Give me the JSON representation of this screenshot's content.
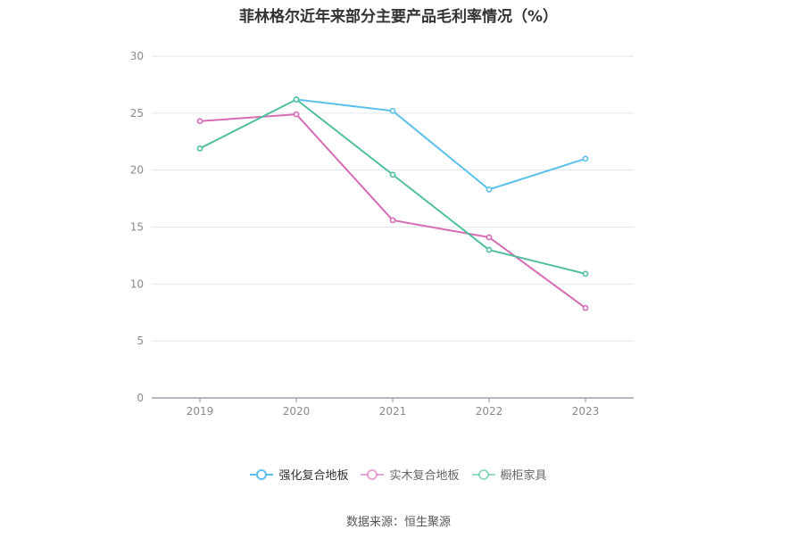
{
  "title": "菲林格尔近年来部分主要产品毛利率情况（%）",
  "source": "数据来源：恒生聚源",
  "chart_data": {
    "type": "line",
    "title": "菲林格尔近年来部分主要产品毛利率情况（%）",
    "categories": [
      "2019",
      "2020",
      "2021",
      "2022",
      "2023"
    ],
    "ylim": [
      0,
      30
    ],
    "yticks": [
      0,
      5,
      10,
      15,
      20,
      25,
      30
    ],
    "grid": true,
    "legend_position": "bottom",
    "series": [
      {
        "name": "强化复合地板",
        "color": "#5bc0eb",
        "values": [
          null,
          26.2,
          25.2,
          18.3,
          21.0
        ]
      },
      {
        "name": "实木复合地板",
        "color": "#d66bb5",
        "values": [
          24.3,
          24.9,
          15.6,
          14.1,
          7.9
        ]
      },
      {
        "name": "橱柜家具",
        "color": "#4fbf9f",
        "values": [
          21.9,
          26.2,
          19.6,
          13.0,
          10.9
        ]
      }
    ]
  }
}
